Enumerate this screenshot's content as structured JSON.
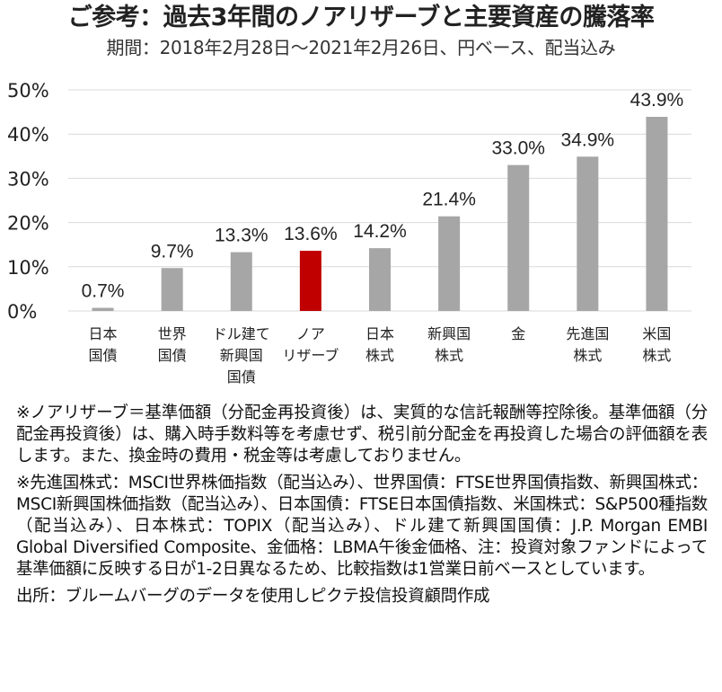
{
  "title": "ご参考：過去3年間のノアリザーブと主要資産の騰落率",
  "subtitle": "期間：2018年2月28日～2021年2月26日、円ベース、配当込み",
  "colors": {
    "default_bar": "#a6a6a6",
    "highlight_bar": "#c00000",
    "grid": "#d9d9d9"
  },
  "chart_data": {
    "type": "bar",
    "categories": [
      [
        "日本",
        "国債"
      ],
      [
        "世界",
        "国債"
      ],
      [
        "ドル建て",
        "新興国",
        "国債"
      ],
      [
        "ノア",
        "リザーブ"
      ],
      [
        "日本",
        "株式"
      ],
      [
        "新興国",
        "株式"
      ],
      [
        "金"
      ],
      [
        "先進国",
        "株式"
      ],
      [
        "米国",
        "株式"
      ]
    ],
    "values": [
      0.7,
      9.7,
      13.3,
      13.6,
      14.2,
      21.4,
      33.0,
      34.9,
      43.9
    ],
    "data_labels": [
      "0.7%",
      "9.7%",
      "13.3%",
      "13.6%",
      "14.2%",
      "21.4%",
      "33.0%",
      "34.9%",
      "43.9%"
    ],
    "highlight_index": 3,
    "ylim": [
      0,
      50
    ],
    "yticks": [
      0,
      10,
      20,
      30,
      40,
      50
    ],
    "ytick_labels": [
      "0%",
      "10%",
      "20%",
      "30%",
      "40%",
      "50%"
    ],
    "grid": true,
    "legend": "none"
  },
  "notes": [
    "※ノアリザーブ＝基準価額（分配金再投資後）は、実質的な信託報酬等控除後。基準価額（分配金再投資後）は、購入時手数料等を考慮せず、税引前分配金を再投資した場合の評価額を表します。また、換金時の費用・税金等は考慮しておりません。",
    "※先進国株式：MSCI世界株価指数（配当込み）、世界国債：FTSE世界国債指数、新興国株式：MSCI新興国株価指数（配当込み）、日本国債：FTSE日本国債指数、米国株式：S&P500種指数（配当込み）、日本株式：TOPIX（配当込み）、ドル建て新興国国債：J.P. Morgan EMBI Global Diversified Composite、金価格：LBMA午後金価格、注：投資対象ファンドによって基準価額に反映する日が1-2日異なるため、比較指数は1営業日前ベースとしています。"
  ],
  "source": "出所：ブルームバーグのデータを使用しピクテ投信投資顧問作成"
}
